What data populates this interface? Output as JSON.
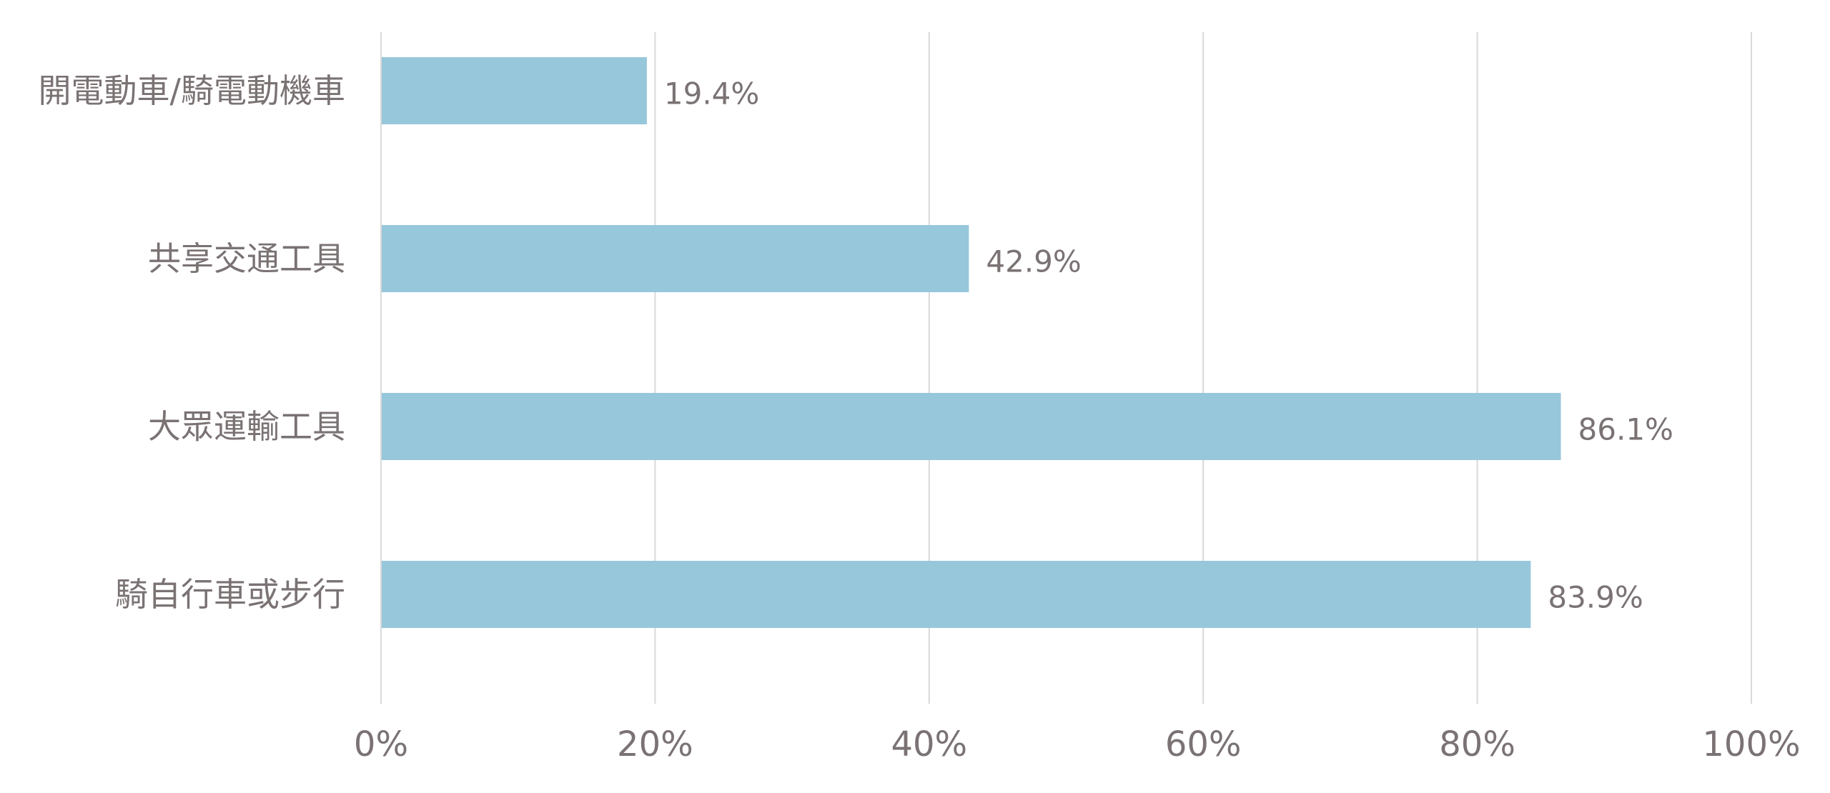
{
  "chart_data": {
    "type": "bar",
    "orientation": "horizontal",
    "title": "",
    "xlabel": "",
    "ylabel": "",
    "categories": [
      "開電動車/騎電動機車",
      "共享交通工具",
      "大眾運輸工具",
      "騎自行車或步行"
    ],
    "values": [
      19.4,
      42.9,
      86.1,
      83.9
    ],
    "data_labels": [
      "19.4%",
      "42.9%",
      "86.1%",
      "83.9%"
    ],
    "xlim": [
      0,
      100
    ],
    "x_ticks": [
      0,
      20,
      40,
      60,
      80,
      100
    ],
    "x_tick_labels": [
      "0%",
      "20%",
      "40%",
      "60%",
      "80%",
      "100%"
    ],
    "grid": true,
    "legend": "none",
    "colors": {
      "bar": "#97c7db",
      "grid": "#d9d9d9",
      "text": "#7a7273"
    }
  }
}
